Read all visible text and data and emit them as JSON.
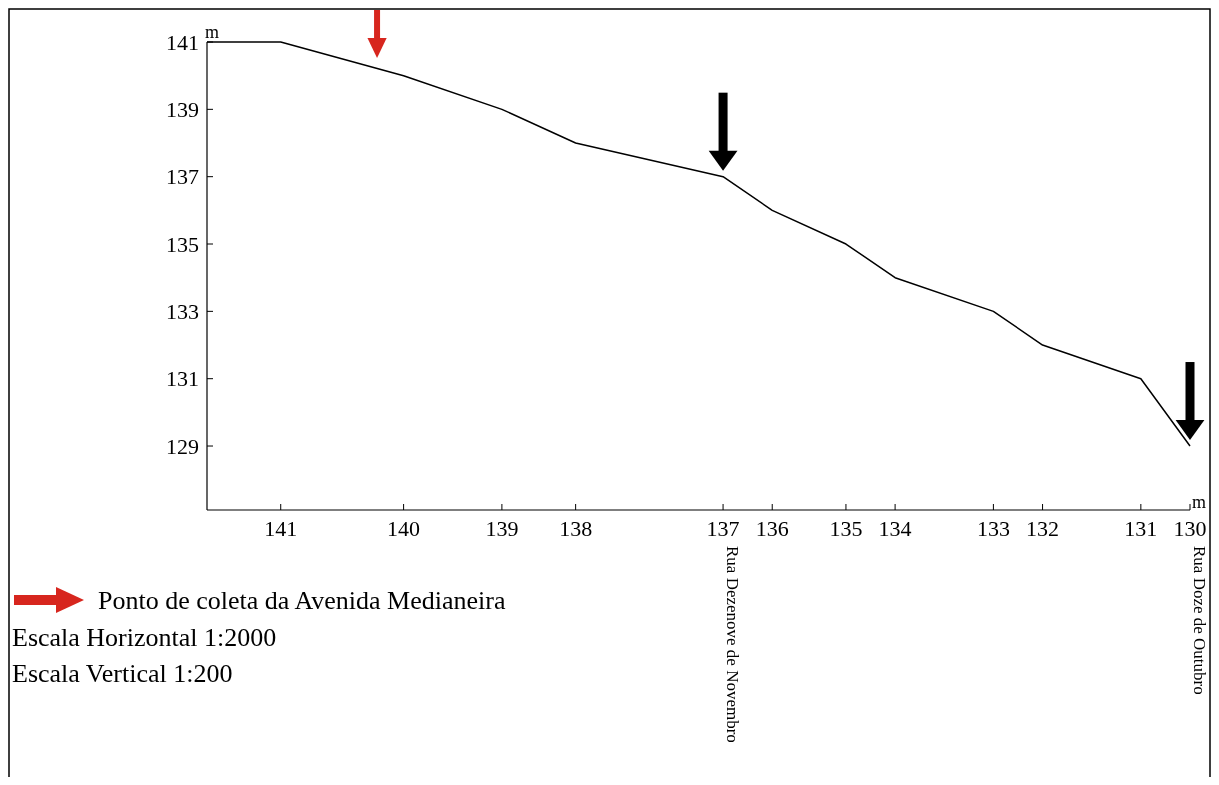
{
  "chart_data": {
    "type": "line",
    "categories": [
      null,
      null,
      null,
      "141",
      null,
      null,
      null,
      null,
      "140",
      null,
      null,
      null,
      "139",
      null,
      null,
      "138",
      null,
      null,
      null,
      null,
      null,
      "137",
      null,
      "136",
      null,
      null,
      "135",
      null,
      "134",
      null,
      null,
      null,
      "133",
      null,
      "132",
      null,
      null,
      null,
      "131",
      null,
      "130"
    ],
    "series": [
      {
        "color": "#000000",
        "values": [
          141,
          null,
          null,
          141,
          null,
          null,
          null,
          null,
          140,
          null,
          null,
          null,
          139,
          null,
          null,
          138,
          null,
          null,
          null,
          null,
          null,
          137,
          null,
          136,
          null,
          null,
          135,
          null,
          134,
          null,
          null,
          null,
          133,
          null,
          132,
          null,
          null,
          null,
          131,
          null,
          129
        ]
      }
    ],
    "ylim": [
      127.1,
      141
    ],
    "yticks": [
      129,
      131,
      133,
      135,
      137,
      139,
      141
    ],
    "xlabel": "m",
    "ylabel": "m",
    "grid": false,
    "marker": "none",
    "line_style": "solid",
    "annotations": [
      "Rua Dezenove de Novembro",
      "Rua Doze de Outubro",
      "Ponto de coleta da Avenida Medianeira",
      "Escala Horizontal 1:2000",
      "Escala Vertical 1:200"
    ]
  }
}
